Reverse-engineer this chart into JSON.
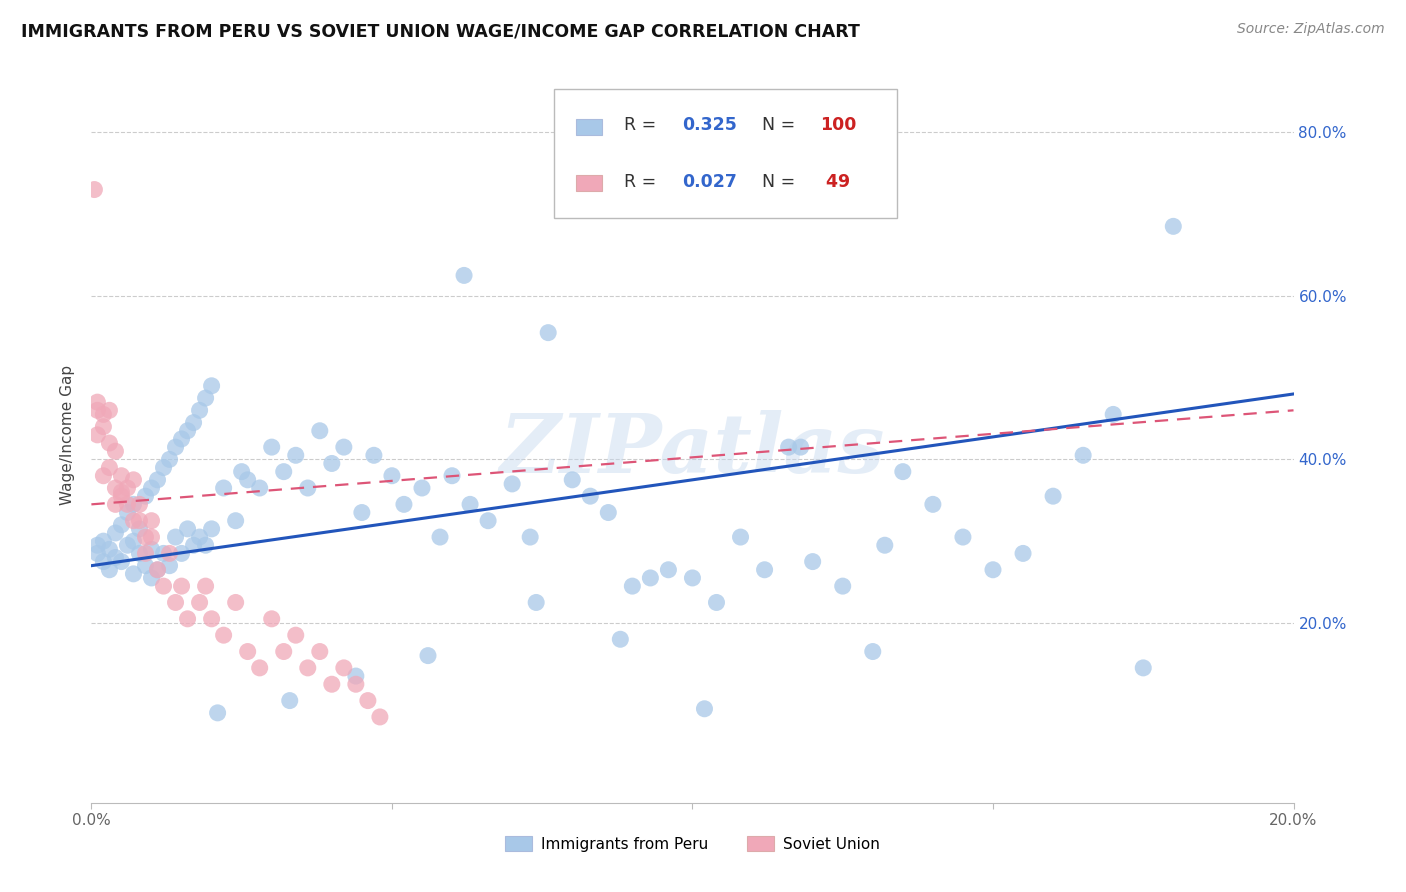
{
  "title": "IMMIGRANTS FROM PERU VS SOVIET UNION WAGE/INCOME GAP CORRELATION CHART",
  "source": "Source: ZipAtlas.com",
  "ylabel": "Wage/Income Gap",
  "background_color": "#ffffff",
  "grid_color": "#cccccc",
  "peru_color": "#a8c8e8",
  "peru_edge": "#a8c8e8",
  "soviet_color": "#f0a8b8",
  "soviet_edge": "#f0a8b8",
  "peru_R": "0.325",
  "peru_N": "100",
  "soviet_R": "0.027",
  "soviet_N": "49",
  "legend_color": "#3366cc",
  "line_color_peru": "#2255bb",
  "line_color_soviet": "#dd5577",
  "xlim": [
    0.0,
    0.2
  ],
  "ylim": [
    -0.02,
    0.88
  ],
  "peru_x": [
    0.001,
    0.001,
    0.002,
    0.002,
    0.003,
    0.003,
    0.004,
    0.004,
    0.005,
    0.005,
    0.006,
    0.006,
    0.007,
    0.007,
    0.007,
    0.008,
    0.008,
    0.009,
    0.009,
    0.01,
    0.01,
    0.01,
    0.011,
    0.011,
    0.012,
    0.012,
    0.013,
    0.013,
    0.014,
    0.014,
    0.015,
    0.015,
    0.016,
    0.016,
    0.017,
    0.017,
    0.018,
    0.018,
    0.019,
    0.019,
    0.02,
    0.02,
    0.022,
    0.024,
    0.025,
    0.026,
    0.028,
    0.03,
    0.032,
    0.034,
    0.036,
    0.038,
    0.04,
    0.042,
    0.045,
    0.047,
    0.05,
    0.052,
    0.055,
    0.058,
    0.06,
    0.063,
    0.066,
    0.07,
    0.073,
    0.076,
    0.08,
    0.083,
    0.086,
    0.09,
    0.093,
    0.096,
    0.1,
    0.104,
    0.108,
    0.112,
    0.116,
    0.12,
    0.125,
    0.13,
    0.135,
    0.14,
    0.145,
    0.15,
    0.155,
    0.16,
    0.165,
    0.17,
    0.175,
    0.18,
    0.056,
    0.044,
    0.033,
    0.021,
    0.062,
    0.074,
    0.088,
    0.102,
    0.118,
    0.132
  ],
  "peru_y": [
    0.285,
    0.295,
    0.3,
    0.275,
    0.29,
    0.265,
    0.31,
    0.28,
    0.32,
    0.275,
    0.335,
    0.295,
    0.345,
    0.3,
    0.26,
    0.315,
    0.285,
    0.355,
    0.27,
    0.365,
    0.29,
    0.255,
    0.375,
    0.265,
    0.39,
    0.285,
    0.4,
    0.27,
    0.415,
    0.305,
    0.425,
    0.285,
    0.435,
    0.315,
    0.445,
    0.295,
    0.46,
    0.305,
    0.475,
    0.295,
    0.49,
    0.315,
    0.365,
    0.325,
    0.385,
    0.375,
    0.365,
    0.415,
    0.385,
    0.405,
    0.365,
    0.435,
    0.395,
    0.415,
    0.335,
    0.405,
    0.38,
    0.345,
    0.365,
    0.305,
    0.38,
    0.345,
    0.325,
    0.37,
    0.305,
    0.555,
    0.375,
    0.355,
    0.335,
    0.245,
    0.255,
    0.265,
    0.255,
    0.225,
    0.305,
    0.265,
    0.415,
    0.275,
    0.245,
    0.165,
    0.385,
    0.345,
    0.305,
    0.265,
    0.285,
    0.355,
    0.405,
    0.455,
    0.145,
    0.685,
    0.16,
    0.135,
    0.105,
    0.09,
    0.625,
    0.225,
    0.18,
    0.095,
    0.415,
    0.295
  ],
  "soviet_x": [
    0.0005,
    0.001,
    0.001,
    0.001,
    0.002,
    0.002,
    0.002,
    0.003,
    0.003,
    0.003,
    0.004,
    0.004,
    0.004,
    0.005,
    0.005,
    0.005,
    0.006,
    0.006,
    0.007,
    0.007,
    0.008,
    0.008,
    0.009,
    0.009,
    0.01,
    0.01,
    0.011,
    0.012,
    0.013,
    0.014,
    0.015,
    0.016,
    0.018,
    0.019,
    0.02,
    0.022,
    0.024,
    0.026,
    0.028,
    0.03,
    0.032,
    0.034,
    0.036,
    0.038,
    0.04,
    0.042,
    0.044,
    0.046,
    0.048
  ],
  "soviet_y": [
    0.73,
    0.47,
    0.46,
    0.43,
    0.455,
    0.44,
    0.38,
    0.42,
    0.46,
    0.39,
    0.41,
    0.365,
    0.345,
    0.38,
    0.355,
    0.36,
    0.365,
    0.345,
    0.325,
    0.375,
    0.325,
    0.345,
    0.305,
    0.285,
    0.325,
    0.305,
    0.265,
    0.245,
    0.285,
    0.225,
    0.245,
    0.205,
    0.225,
    0.245,
    0.205,
    0.185,
    0.225,
    0.165,
    0.145,
    0.205,
    0.165,
    0.185,
    0.145,
    0.165,
    0.125,
    0.145,
    0.125,
    0.105,
    0.085
  ]
}
